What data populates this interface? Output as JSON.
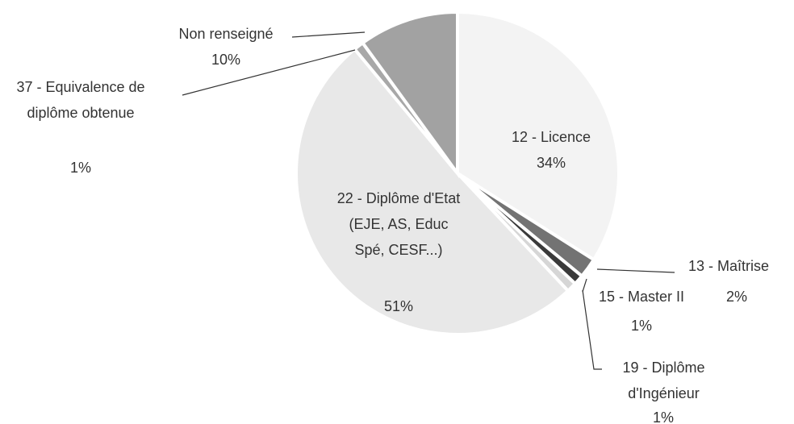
{
  "chart_data": {
    "type": "pie",
    "categories": [
      "12 - Licence",
      "13 - Maîtrise",
      "15 - Master II",
      "19 - Diplôme d'Ingénieur",
      "22 - Diplôme d'Etat (EJE, AS, Educ Spé, CESF...)",
      "37 - Equivalence de diplôme obtenue",
      "Non renseigné"
    ],
    "values": [
      34,
      2,
      1,
      1,
      51,
      1,
      10
    ],
    "value_labels": [
      "34%",
      "2%",
      "1%",
      "1%",
      "51%",
      "1%",
      "10%"
    ],
    "colors": [
      "#f3f3f3",
      "#737373",
      "#3a3a3a",
      "#d6d6d6",
      "#e8e8e8",
      "#a8a8a8",
      "#a2a2a2"
    ]
  }
}
